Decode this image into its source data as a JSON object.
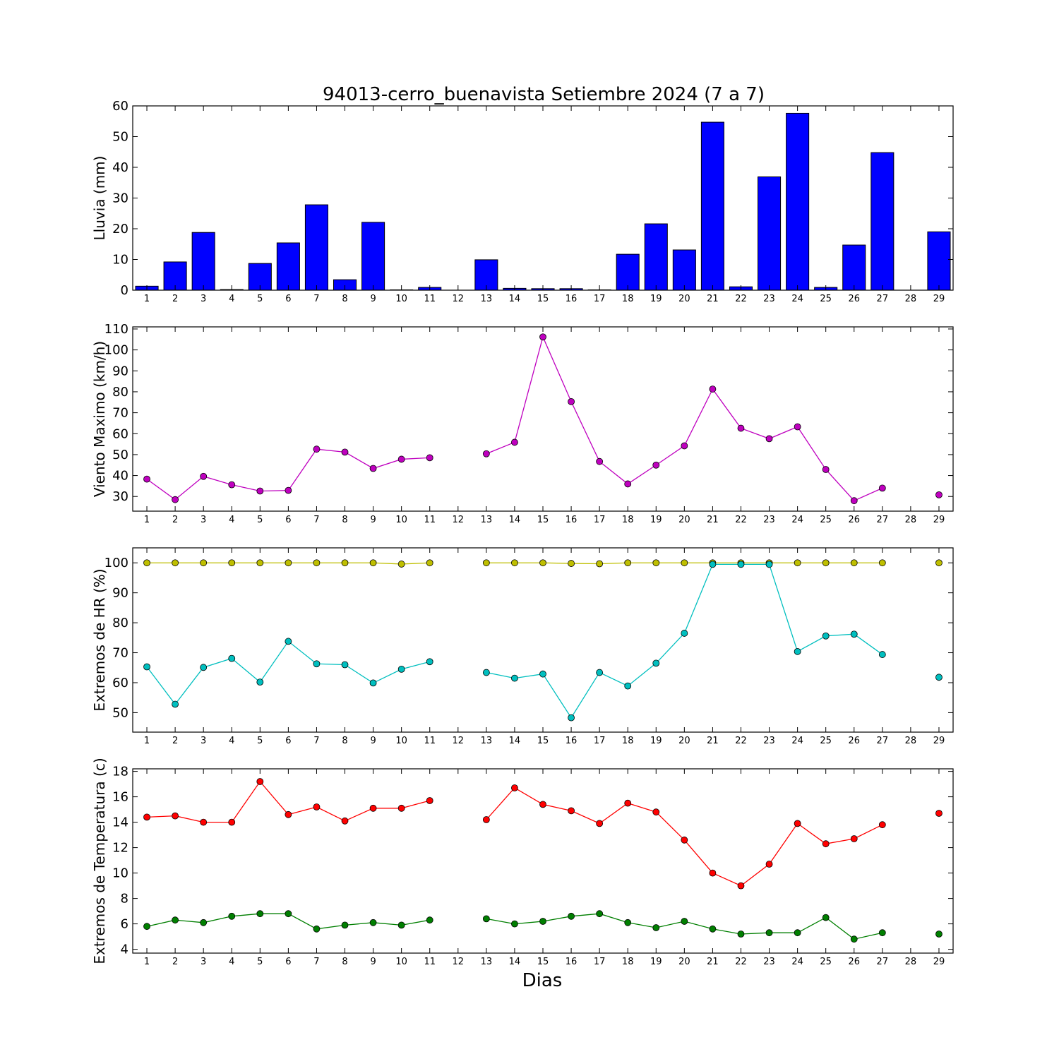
{
  "figure": {
    "title": "94013-cerro_buenavista Setiembre 2024  (7 a 7)",
    "xlabel": "Dias"
  },
  "chart_data": [
    {
      "type": "bar",
      "ylabel": "Lluvia (mm)",
      "ylim": [
        0,
        60
      ],
      "yticks": [
        0,
        10,
        20,
        30,
        40,
        50,
        60
      ],
      "x": [
        1,
        2,
        3,
        4,
        5,
        6,
        7,
        8,
        9,
        10,
        11,
        12,
        13,
        14,
        15,
        16,
        17,
        18,
        19,
        20,
        21,
        22,
        23,
        24,
        25,
        26,
        27,
        28,
        29
      ],
      "series": [
        {
          "color": "#0000ff",
          "values": [
            1.3,
            9.2,
            18.8,
            0.2,
            8.7,
            15.4,
            27.8,
            3.4,
            22.1,
            0.1,
            0.9,
            0,
            9.9,
            0.6,
            0.5,
            0.5,
            0.1,
            11.7,
            21.6,
            13.1,
            54.7,
            1.1,
            36.9,
            57.6,
            0.9,
            14.7,
            44.8,
            0,
            19.0
          ]
        }
      ]
    },
    {
      "type": "line",
      "ylabel": "Viento Maximo (km/h)",
      "ylim": [
        23,
        111
      ],
      "yticks": [
        30,
        40,
        50,
        60,
        70,
        80,
        90,
        100,
        110
      ],
      "x": [
        1,
        2,
        3,
        4,
        5,
        6,
        7,
        8,
        9,
        10,
        11,
        12,
        13,
        14,
        15,
        16,
        17,
        18,
        19,
        20,
        21,
        22,
        23,
        24,
        25,
        26,
        27,
        28,
        29
      ],
      "series": [
        {
          "color": "#bf00bf",
          "values": [
            38.3,
            28.5,
            39.6,
            35.6,
            32.6,
            32.9,
            52.6,
            51.2,
            43.4,
            47.8,
            48.5,
            null,
            50.4,
            55.9,
            106.2,
            75.3,
            46.7,
            36.0,
            45.0,
            54.2,
            81.3,
            62.6,
            57.6,
            63.3,
            42.9,
            28.0,
            34.0,
            null,
            30.8
          ]
        }
      ]
    },
    {
      "type": "line",
      "ylabel": "Extremos de HR (%)",
      "ylim": [
        43.5,
        105
      ],
      "yticks": [
        50,
        60,
        70,
        80,
        90,
        100
      ],
      "x": [
        1,
        2,
        3,
        4,
        5,
        6,
        7,
        8,
        9,
        10,
        11,
        12,
        13,
        14,
        15,
        16,
        17,
        18,
        19,
        20,
        21,
        22,
        23,
        24,
        25,
        26,
        27,
        28,
        29
      ],
      "series": [
        {
          "color": "#bfbf00",
          "values": [
            100,
            100,
            100,
            100,
            100,
            100,
            100,
            100,
            100,
            99.6,
            100,
            null,
            100,
            100,
            100,
            99.8,
            99.7,
            100,
            100,
            100,
            100,
            100,
            100,
            100,
            100,
            100,
            100,
            null,
            100
          ]
        },
        {
          "color": "#00bfbf",
          "values": [
            65.3,
            52.8,
            65.1,
            68.1,
            60.2,
            73.8,
            66.3,
            66.0,
            59.9,
            64.5,
            67.0,
            null,
            63.4,
            61.5,
            62.9,
            48.3,
            63.4,
            58.9,
            66.5,
            76.5,
            99.5,
            99.5,
            99.5,
            70.4,
            75.6,
            76.2,
            69.4,
            null,
            61.8
          ]
        }
      ]
    },
    {
      "type": "line",
      "ylabel": "Extremos de Temperatura (c)",
      "ylim": [
        3.7,
        18.2
      ],
      "yticks": [
        4,
        6,
        8,
        10,
        12,
        14,
        16,
        18
      ],
      "x": [
        1,
        2,
        3,
        4,
        5,
        6,
        7,
        8,
        9,
        10,
        11,
        12,
        13,
        14,
        15,
        16,
        17,
        18,
        19,
        20,
        21,
        22,
        23,
        24,
        25,
        26,
        27,
        28,
        29
      ],
      "series": [
        {
          "color": "#ff0000",
          "values": [
            14.4,
            14.5,
            14.0,
            14.0,
            17.2,
            14.6,
            15.2,
            14.1,
            15.1,
            15.1,
            15.7,
            null,
            14.2,
            16.7,
            15.4,
            14.9,
            13.9,
            15.5,
            14.8,
            12.6,
            10.0,
            9.0,
            10.7,
            13.9,
            12.3,
            12.7,
            13.8,
            null,
            14.7
          ]
        },
        {
          "color": "#007f00",
          "values": [
            5.8,
            6.3,
            6.1,
            6.6,
            6.8,
            6.8,
            5.6,
            5.9,
            6.1,
            5.9,
            6.3,
            null,
            6.4,
            6.0,
            6.2,
            6.6,
            6.8,
            6.1,
            5.7,
            6.2,
            5.6,
            5.2,
            5.3,
            5.3,
            6.5,
            4.8,
            5.3,
            null,
            5.2
          ]
        }
      ]
    }
  ]
}
